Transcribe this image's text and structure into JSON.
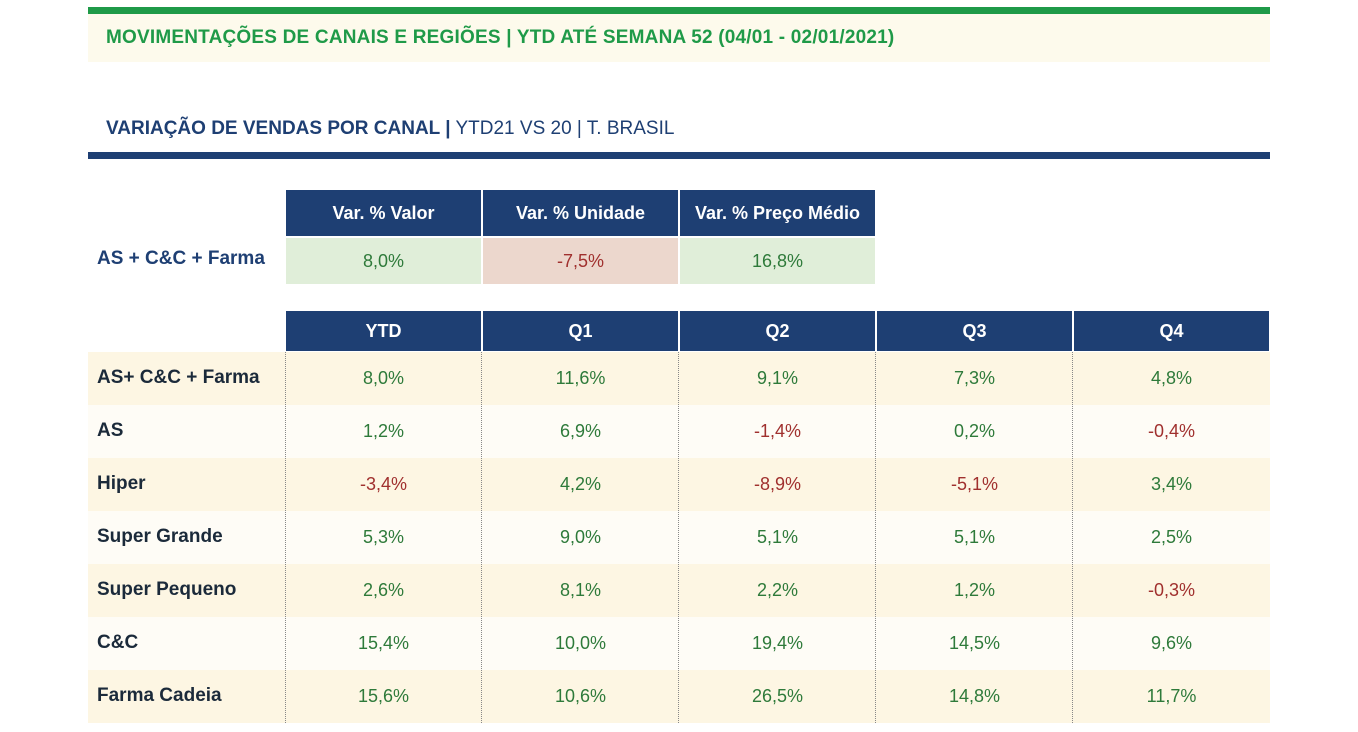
{
  "banner": {
    "title": "MOVIMENTAÇÕES DE CANAIS E REGIÕES | YTD ATÉ SEMANA 52 (04/01 - 02/01/2021)"
  },
  "section": {
    "title_strong": "VARIAÇÃO DE VENDAS POR CANAL |",
    "title_rest": " YTD21 VS 20 | T. BRASIL"
  },
  "summary": {
    "headers": [
      "Var. % Valor",
      "Var. % Unidade",
      "Var. % Preço Médio"
    ],
    "row_label": "AS + C&C + Farma",
    "values": [
      "8,0%",
      "-7,5%",
      "16,8%"
    ],
    "cell_colors": [
      "#e0eed9",
      "#ecd7cd",
      "#e0eed9"
    ]
  },
  "quarters": {
    "headers": [
      "YTD",
      "Q1",
      "Q2",
      "Q3",
      "Q4"
    ],
    "rows": [
      {
        "label": "AS+ C&C + Farma",
        "values": [
          "8,0%",
          "11,6%",
          "9,1%",
          "7,3%",
          "4,8%"
        ]
      },
      {
        "label": "AS",
        "values": [
          "1,2%",
          "6,9%",
          "-1,4%",
          "0,2%",
          "-0,4%"
        ]
      },
      {
        "label": "Hiper",
        "values": [
          "-3,4%",
          "4,2%",
          "-8,9%",
          "-5,1%",
          "3,4%"
        ]
      },
      {
        "label": "Super Grande",
        "values": [
          "5,3%",
          "9,0%",
          "5,1%",
          "5,1%",
          "2,5%"
        ]
      },
      {
        "label": "Super Pequeno",
        "values": [
          "2,6%",
          "8,1%",
          "2,2%",
          "1,2%",
          "-0,3%"
        ]
      },
      {
        "label": "C&C",
        "values": [
          "15,4%",
          "10,0%",
          "19,4%",
          "14,5%",
          "9,6%"
        ]
      },
      {
        "label": "Farma Cadeia",
        "values": [
          "15,6%",
          "10,6%",
          "26,5%",
          "14,8%",
          "11,7%"
        ]
      }
    ]
  },
  "colors": {
    "green_accent": "#1f9a48",
    "navy": "#1e3f73",
    "row_cream": "#fdf6e3",
    "row_white": "#fefcf6",
    "positive_text": "#2e7a3a",
    "negative_text": "#a0302e"
  }
}
